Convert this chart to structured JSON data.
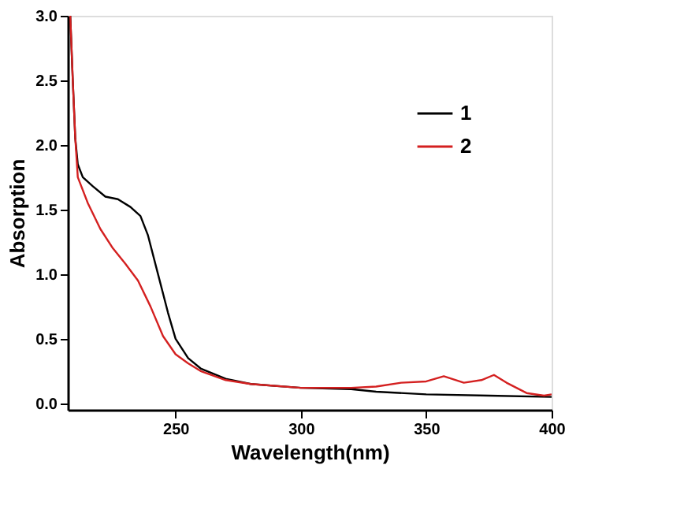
{
  "chart_data": {
    "type": "line",
    "xlabel": "Wavelength(nm)",
    "ylabel": "Absorption",
    "xlim": [
      207,
      400
    ],
    "xticks": [
      250,
      300,
      350,
      400
    ],
    "ylim": [
      -0.05,
      3.0
    ],
    "yticks": [
      {
        "value": 0,
        "label": "0.0"
      },
      0.5,
      {
        "value": 1,
        "label": "1.0"
      },
      1.5,
      {
        "value": 2,
        "label": "2.0"
      },
      2.5,
      {
        "value": 3,
        "label": "3.0"
      }
    ],
    "grid": false,
    "legend": "top right",
    "marker": "none",
    "line_style": "solid",
    "series": [
      {
        "name": "1",
        "color": "#000000",
        "x": [
          208,
          209,
          210,
          211,
          213,
          217,
          222,
          227,
          232,
          236,
          239,
          243,
          247,
          250,
          255,
          260,
          270,
          280,
          300,
          320,
          330,
          350,
          375,
          400
        ],
        "values": [
          3.0,
          2.5,
          2.05,
          1.85,
          1.75,
          1.68,
          1.6,
          1.58,
          1.52,
          1.45,
          1.3,
          1.0,
          0.7,
          0.5,
          0.35,
          0.27,
          0.19,
          0.15,
          0.12,
          0.11,
          0.09,
          0.07,
          0.06,
          0.05
        ]
      },
      {
        "name": "2",
        "color": "#d42020",
        "x": [
          208,
          209,
          210,
          211,
          215,
          220,
          225,
          230,
          235,
          240,
          245,
          250,
          255,
          260,
          270,
          280,
          300,
          320,
          330,
          340,
          350,
          357,
          365,
          372,
          377,
          382,
          390,
          397,
          400
        ],
        "values": [
          3.0,
          2.5,
          2.05,
          1.75,
          1.55,
          1.35,
          1.2,
          1.08,
          0.95,
          0.75,
          0.52,
          0.38,
          0.31,
          0.25,
          0.18,
          0.15,
          0.12,
          0.12,
          0.13,
          0.16,
          0.17,
          0.21,
          0.16,
          0.18,
          0.22,
          0.16,
          0.08,
          0.06,
          0.07
        ]
      }
    ]
  }
}
